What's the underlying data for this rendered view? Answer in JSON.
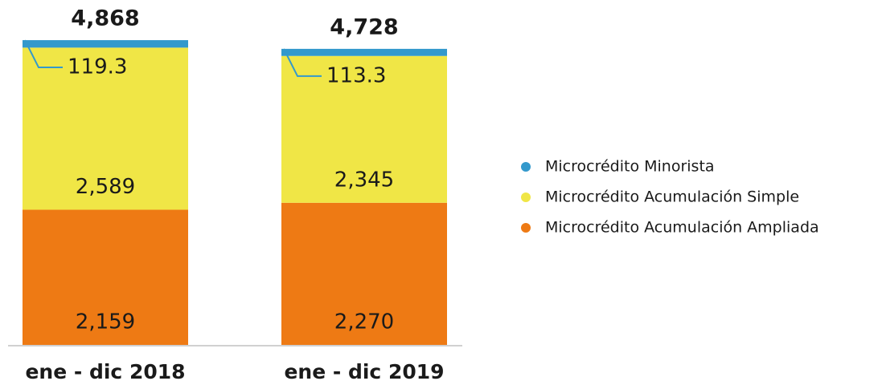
{
  "chart_data": {
    "type": "stacked-bar",
    "categories": [
      "ene - dic 2018",
      "ene - dic 2019"
    ],
    "series": [
      {
        "name": "Microcrédito Minorista",
        "color": "#3399cc",
        "values": [
          119.3,
          113.3
        ]
      },
      {
        "name": "Microcrédito Acumulación Simple",
        "color": "#f0e646",
        "values": [
          2589,
          2345
        ],
        "value_labels": [
          "2,589",
          "2,345"
        ]
      },
      {
        "name": "Microcrédito Acumulación Ampliada",
        "color": "#ee7a14",
        "values": [
          2159,
          2270
        ],
        "value_labels": [
          "2,159",
          "2,270"
        ]
      }
    ],
    "totals": [
      4868,
      4728
    ],
    "total_labels": [
      "4,868",
      "4,728"
    ]
  }
}
